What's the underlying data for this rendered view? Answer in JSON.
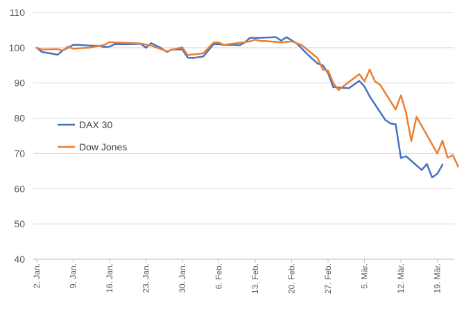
{
  "chart_data": {
    "type": "line",
    "title": "",
    "xlabel": "",
    "ylabel": "",
    "ylim": [
      40,
      110
    ],
    "y_ticks": [
      40,
      50,
      60,
      70,
      80,
      90,
      100,
      110
    ],
    "x_tick_labels": [
      "2. Jan.",
      "9. Jan.",
      "16. Jan.",
      "23. Jan.",
      "30. Jan.",
      "6. Feb.",
      "13. Feb.",
      "20. Feb.",
      "27. Feb.",
      "5. Mär.",
      "12. Mär.",
      "19. Mär."
    ],
    "x_tick_days": [
      0,
      7,
      14,
      21,
      28,
      35,
      42,
      49,
      56,
      63,
      70,
      77
    ],
    "x_range_days": [
      0,
      78
    ],
    "grid": "horizontal",
    "legend_position": "left-center",
    "series": [
      {
        "name": "DAX 30",
        "color": "#4472C4",
        "points": [
          [
            0,
            100.0
          ],
          [
            1,
            98.8
          ],
          [
            3,
            98.3
          ],
          [
            4,
            98.0
          ],
          [
            5,
            99.2
          ],
          [
            7,
            100.8
          ],
          [
            8,
            100.8
          ],
          [
            10,
            100.6
          ],
          [
            12,
            100.5
          ],
          [
            13,
            100.2
          ],
          [
            14,
            100.3
          ],
          [
            15,
            101.0
          ],
          [
            16,
            101.0
          ],
          [
            18,
            101.0
          ],
          [
            20,
            101.1
          ],
          [
            21,
            100.0
          ],
          [
            22,
            101.3
          ],
          [
            24,
            99.8
          ],
          [
            25,
            98.8
          ],
          [
            26,
            99.5
          ],
          [
            28,
            99.5
          ],
          [
            29,
            97.2
          ],
          [
            30,
            97.1
          ],
          [
            32,
            97.5
          ],
          [
            34,
            101.0
          ],
          [
            35,
            101.0
          ],
          [
            36,
            100.8
          ],
          [
            38,
            100.8
          ],
          [
            39,
            100.7
          ],
          [
            40,
            101.5
          ],
          [
            41,
            102.8
          ],
          [
            43,
            102.8
          ],
          [
            46,
            103.0
          ],
          [
            47,
            102.0
          ],
          [
            48,
            103.0
          ],
          [
            50,
            101.2
          ],
          [
            52,
            98.2
          ],
          [
            53,
            96.8
          ],
          [
            54,
            95.5
          ],
          [
            55,
            95.0
          ],
          [
            56,
            92.8
          ],
          [
            57,
            88.8
          ],
          [
            59,
            88.6
          ],
          [
            60,
            88.5
          ],
          [
            62,
            90.6
          ],
          [
            63,
            89.0
          ],
          [
            64,
            86.2
          ],
          [
            67,
            79.5
          ],
          [
            68,
            78.5
          ],
          [
            69,
            78.3
          ],
          [
            70,
            68.7
          ],
          [
            71,
            69.2
          ],
          [
            74,
            65.3
          ],
          [
            75,
            67.0
          ],
          [
            76,
            63.2
          ],
          [
            77,
            64.2
          ],
          [
            78,
            66.8
          ]
        ]
      },
      {
        "name": "Dow Jones",
        "color": "#ED7D31",
        "points": [
          [
            0,
            100.0
          ],
          [
            1,
            99.5
          ],
          [
            4,
            99.6
          ],
          [
            5,
            99.2
          ],
          [
            6,
            100.3
          ],
          [
            7,
            99.7
          ],
          [
            10,
            100.0
          ],
          [
            13,
            100.8
          ],
          [
            14,
            101.6
          ],
          [
            15,
            101.5
          ],
          [
            20,
            101.2
          ],
          [
            22,
            100.6
          ],
          [
            25,
            99.0
          ],
          [
            27,
            99.8
          ],
          [
            28,
            100.1
          ],
          [
            29,
            97.9
          ],
          [
            32,
            98.4
          ],
          [
            34,
            101.5
          ],
          [
            35,
            101.5
          ],
          [
            36,
            100.8
          ],
          [
            40,
            101.6
          ],
          [
            41,
            101.8
          ],
          [
            42,
            102.3
          ],
          [
            43,
            101.9
          ],
          [
            44,
            101.9
          ],
          [
            47,
            101.5
          ],
          [
            49,
            101.8
          ],
          [
            51,
            100.7
          ],
          [
            54,
            97.0
          ],
          [
            55,
            93.8
          ],
          [
            56,
            93.5
          ],
          [
            57,
            90.0
          ],
          [
            58,
            88.0
          ],
          [
            62,
            92.5
          ],
          [
            63,
            90.5
          ],
          [
            64,
            93.8
          ],
          [
            65,
            90.5
          ],
          [
            66,
            89.5
          ],
          [
            69,
            82.5
          ],
          [
            70,
            86.5
          ],
          [
            71,
            81.5
          ],
          [
            72,
            73.5
          ],
          [
            73,
            80.4
          ],
          [
            77,
            70.0
          ],
          [
            78,
            73.6
          ],
          [
            79,
            68.8
          ],
          [
            80,
            69.5
          ],
          [
            81,
            66.3
          ]
        ]
      }
    ]
  }
}
